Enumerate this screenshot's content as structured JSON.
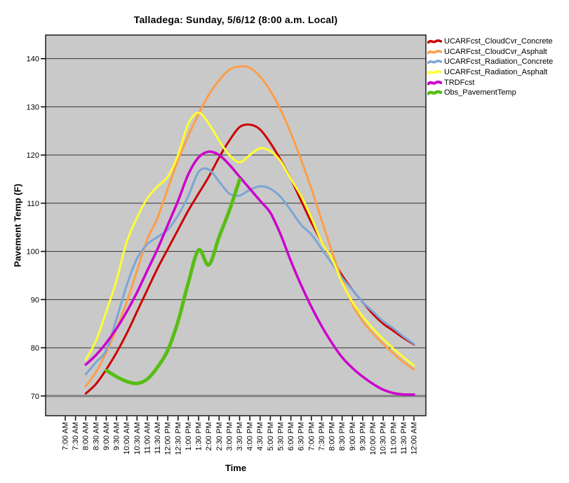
{
  "chart_data": {
    "type": "line",
    "title": "Talladega: Sunday, 5/6/12 (8:00 a.m. Local)",
    "xlabel": "Time",
    "ylabel": "Pavement Temp (F)",
    "ylim": [
      65.9,
      144.9
    ],
    "yticks": [
      70,
      80,
      90,
      100,
      110,
      120,
      130,
      140
    ],
    "grid": "horizontal",
    "plot_background": "#C9C9C9",
    "gridline_color": "#333333",
    "baseline_gridline_color": "#7F7F7F",
    "legend_position": "top-right",
    "categories": [
      "7:00 AM",
      "7:30 AM",
      "8:00 AM",
      "8:30 AM",
      "9:00 AM",
      "9:30 AM",
      "10:00 AM",
      "10:30 AM",
      "11:00 AM",
      "11:30 AM",
      "12:00 PM",
      "12:30 PM",
      "1:00 PM",
      "1:30 PM",
      "2:00 PM",
      "2:30 PM",
      "3:00 PM",
      "3:30 PM",
      "4:00 PM",
      "4:30 PM",
      "5:00 PM",
      "5:30 PM",
      "6:00 PM",
      "6:30 PM",
      "7:00 PM",
      "7:30 PM",
      "8:00 PM",
      "8:30 PM",
      "9:00 PM",
      "9:30 PM",
      "10:00 PM",
      "10:30 PM",
      "11:00 PM",
      "11:30 PM",
      "12:00 AM"
    ],
    "series": [
      {
        "name": "UCARFcst_CloudCvr_Concrete",
        "color": "#CC0000",
        "width": 3,
        "start_index": 2,
        "values": [
          70.5,
          72.5,
          75.5,
          79,
          83,
          87.5,
          92,
          96.5,
          100.5,
          104.5,
          108.5,
          112,
          115.5,
          119.5,
          123,
          125.8,
          126.3,
          125.3,
          122.5,
          119,
          115,
          110.5,
          106,
          102,
          98.5,
          95,
          92,
          89.5,
          87,
          85,
          83.5,
          82,
          80.7
        ]
      },
      {
        "name": "UCARFcst_CloudCvr_Asphalt",
        "color": "#FC9E49",
        "width": 3,
        "start_index": 2,
        "values": [
          72,
          75,
          79,
          84,
          89.5,
          96,
          102.5,
          107,
          113,
          119,
          124,
          128.5,
          132.5,
          135.5,
          137.7,
          138.4,
          138.1,
          136.3,
          133.3,
          129.4,
          124.5,
          119,
          113,
          106.5,
          100,
          94,
          89,
          85.5,
          83,
          80.8,
          78.8,
          77,
          75.5
        ]
      },
      {
        "name": "UCARFcst_Radiation_Concrete",
        "color": "#7CA5D5",
        "width": 3,
        "start_index": 2,
        "values": [
          74.5,
          77,
          79.5,
          86,
          93,
          98.5,
          101.5,
          103,
          104.5,
          107.5,
          111.5,
          116.5,
          117,
          114.5,
          112,
          111.6,
          112.8,
          113.5,
          113,
          111.3,
          108.5,
          105.5,
          103.5,
          100.5,
          97.5,
          94.5,
          92,
          89.5,
          87.5,
          85.5,
          84,
          82.3,
          80.8
        ]
      },
      {
        "name": "UCARFcst_Radiation_Asphalt",
        "color": "#FFFF33",
        "width": 3,
        "start_index": 2,
        "values": [
          77.5,
          81.5,
          87.5,
          94,
          102,
          107,
          111,
          113.5,
          115.5,
          120,
          126.5,
          128.8,
          126.5,
          123,
          120,
          118.5,
          120,
          121.4,
          120.8,
          118.7,
          115,
          111.5,
          107,
          102,
          98.5,
          93.5,
          89.5,
          86.5,
          84,
          81.8,
          79.8,
          78,
          76.3
        ]
      },
      {
        "name": "TRDFcst",
        "color": "#CC00CC",
        "width": 3.5,
        "start_index": 2,
        "values": [
          76.5,
          78.5,
          81,
          84,
          87.5,
          91.5,
          96,
          100.5,
          105.5,
          110.5,
          116,
          119.5,
          120.7,
          120,
          118,
          115.5,
          113,
          110.5,
          108,
          103.5,
          98,
          93,
          88.5,
          84.5,
          81,
          78,
          75.8,
          74,
          72.5,
          71.3,
          70.6,
          70.3,
          70.3
        ]
      },
      {
        "name": "Obs_PavementTemp",
        "color": "#58BD14",
        "width": 5,
        "start_index": 4,
        "values": [
          75.3,
          74,
          73,
          72.6,
          73.5,
          76,
          79.5,
          85.5,
          93.5,
          100.3,
          97.2,
          103,
          108.5,
          114.9
        ]
      }
    ]
  }
}
